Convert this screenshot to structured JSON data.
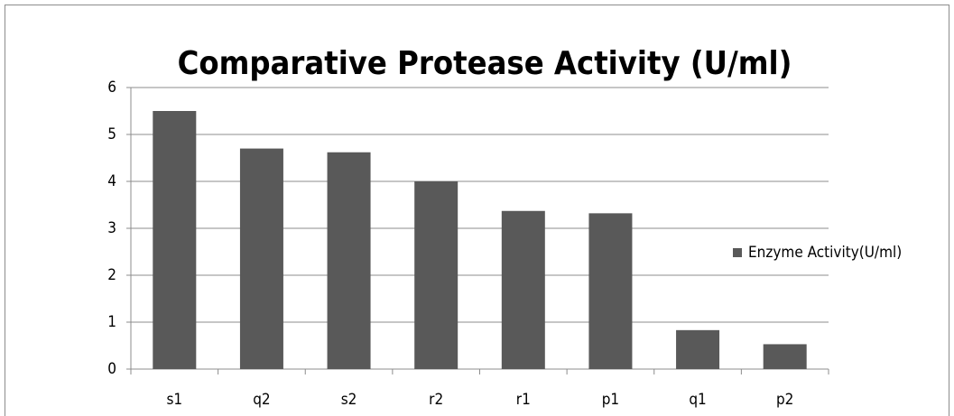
{
  "chart_data": {
    "type": "bar",
    "title": "Comparative Protease Activity (U/ml)",
    "categories": [
      "s1",
      "q2",
      "s2",
      "r2",
      "r1",
      "p1",
      "q1",
      "p2"
    ],
    "series": [
      {
        "name": "Enzyme Activity(U/ml)",
        "color": "#595959",
        "values": [
          5.5,
          4.7,
          4.62,
          4.0,
          3.37,
          3.32,
          0.83,
          0.53
        ]
      }
    ],
    "ylim": [
      0,
      6
    ],
    "yticks": [
      0,
      1,
      2,
      3,
      4,
      5,
      6
    ],
    "grid": true,
    "legend": "right"
  }
}
